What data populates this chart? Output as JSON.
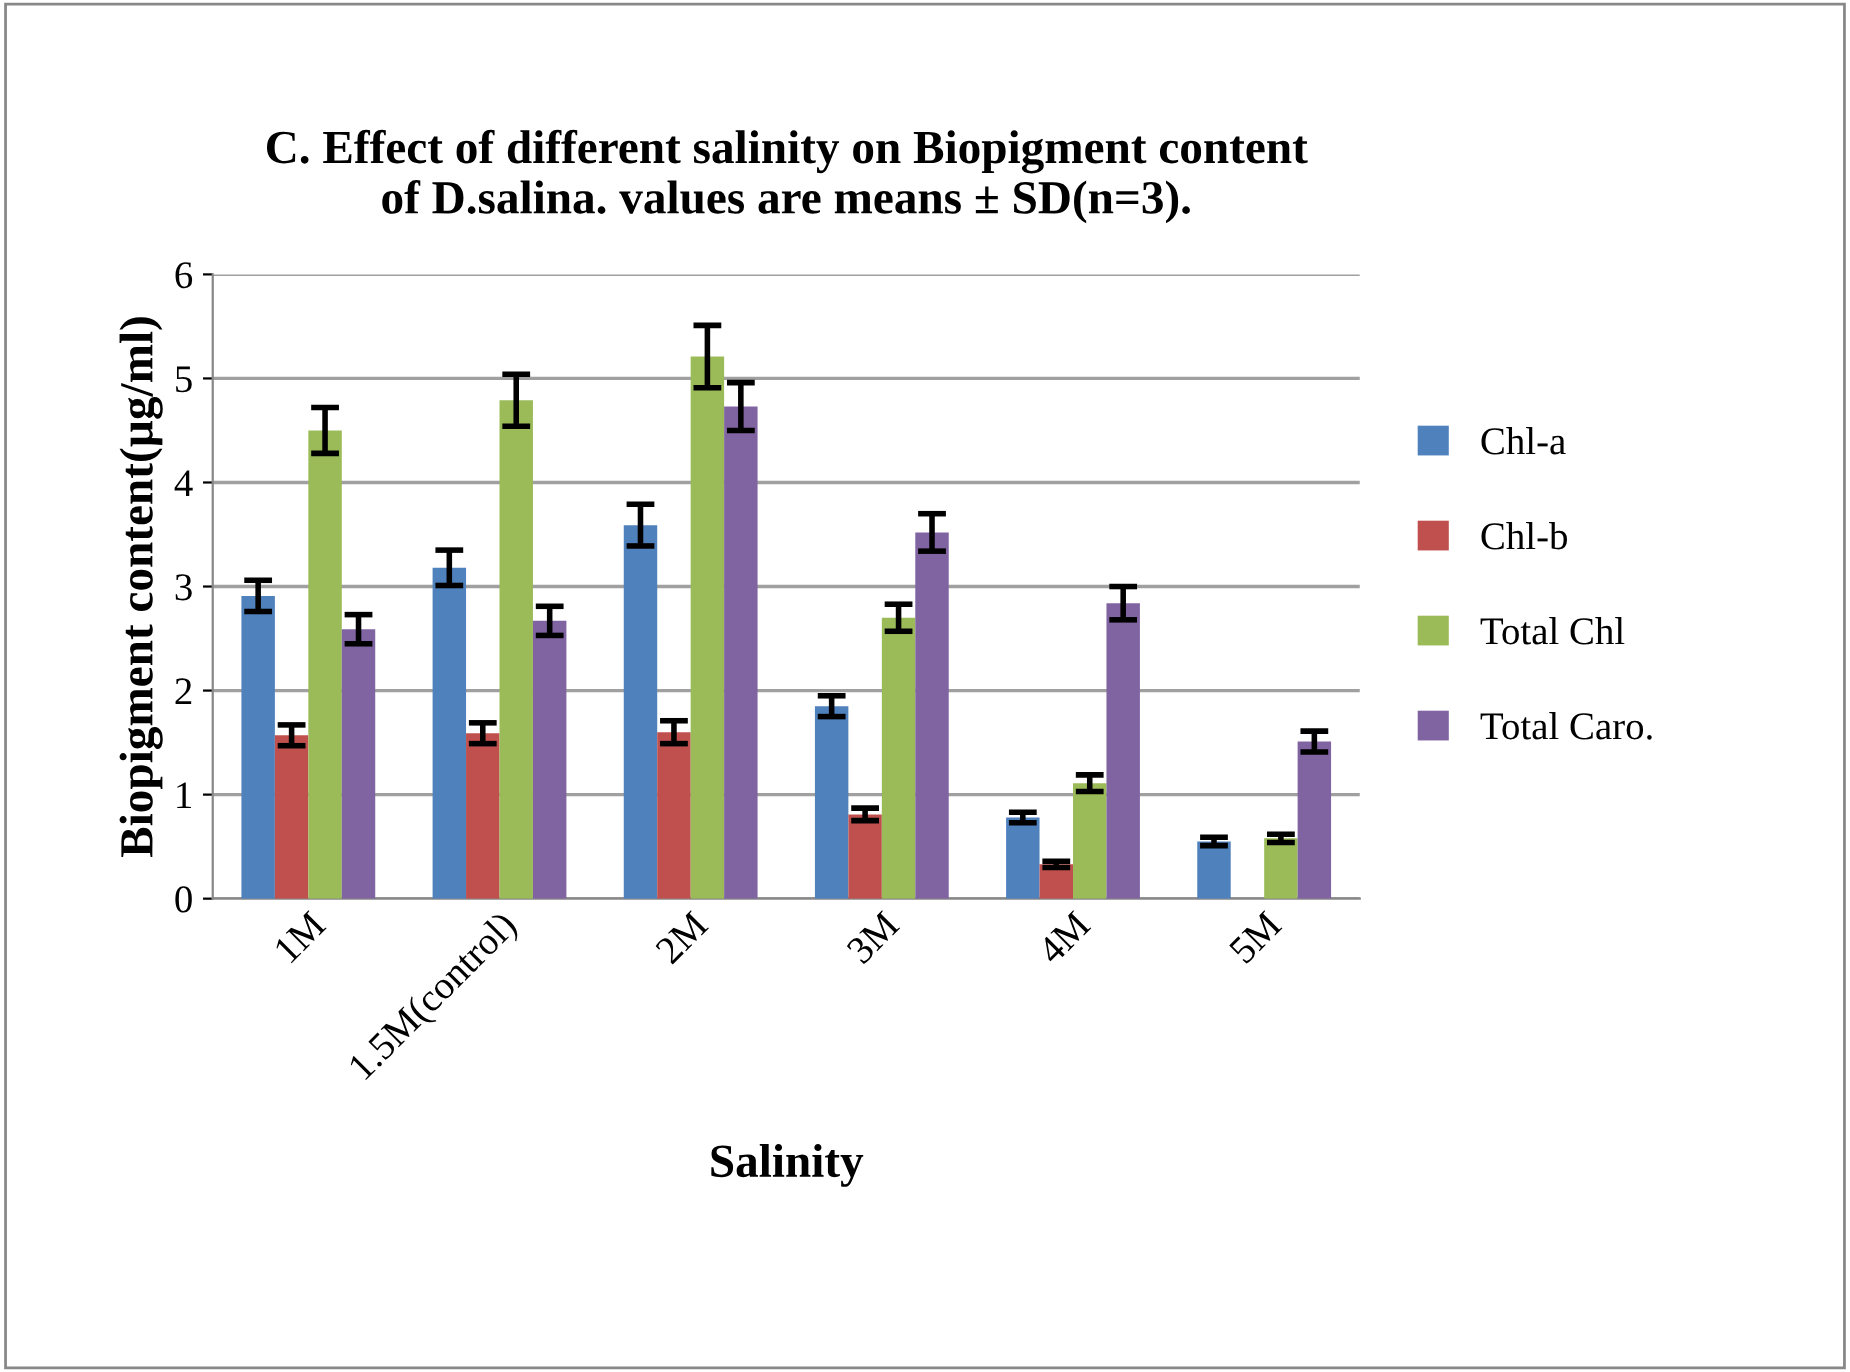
{
  "chart_data": {
    "type": "bar",
    "title": "C. Effect of different salinity on Biopigment content\nof D.salina. values are means ± SD(n=3).",
    "xlabel": "Salinity",
    "ylabel": "Biopigment content(µg/ml)",
    "categories": [
      "1M",
      "1.5M(control)",
      "2M",
      "3M",
      "4M",
      "5M"
    ],
    "series": [
      {
        "name": "Chl-a",
        "color": "#4f81bd",
        "values": [
          2.91,
          3.18,
          3.59,
          1.85,
          0.78,
          0.55
        ],
        "errors": [
          0.15,
          0.17,
          0.2,
          0.1,
          0.05,
          0.04
        ]
      },
      {
        "name": "Chl-b",
        "color": "#c0504d",
        "values": [
          1.57,
          1.59,
          1.6,
          0.81,
          0.33,
          null
        ],
        "errors": [
          0.1,
          0.1,
          0.11,
          0.06,
          0.03,
          null
        ]
      },
      {
        "name": "Total Chl",
        "color": "#9bbb59",
        "values": [
          4.5,
          4.79,
          5.21,
          2.7,
          1.11,
          0.58
        ],
        "errors": [
          0.22,
          0.25,
          0.3,
          0.13,
          0.08,
          0.04
        ]
      },
      {
        "name": "Total Caro.",
        "color": "#8064a2",
        "values": [
          2.59,
          2.67,
          4.73,
          3.52,
          2.84,
          1.51
        ],
        "errors": [
          0.14,
          0.14,
          0.23,
          0.18,
          0.16,
          0.1
        ]
      }
    ],
    "ylim": [
      0,
      6
    ],
    "yticks": [
      0,
      1,
      2,
      3,
      4,
      5,
      6
    ],
    "grid": "y",
    "legend": "right"
  }
}
